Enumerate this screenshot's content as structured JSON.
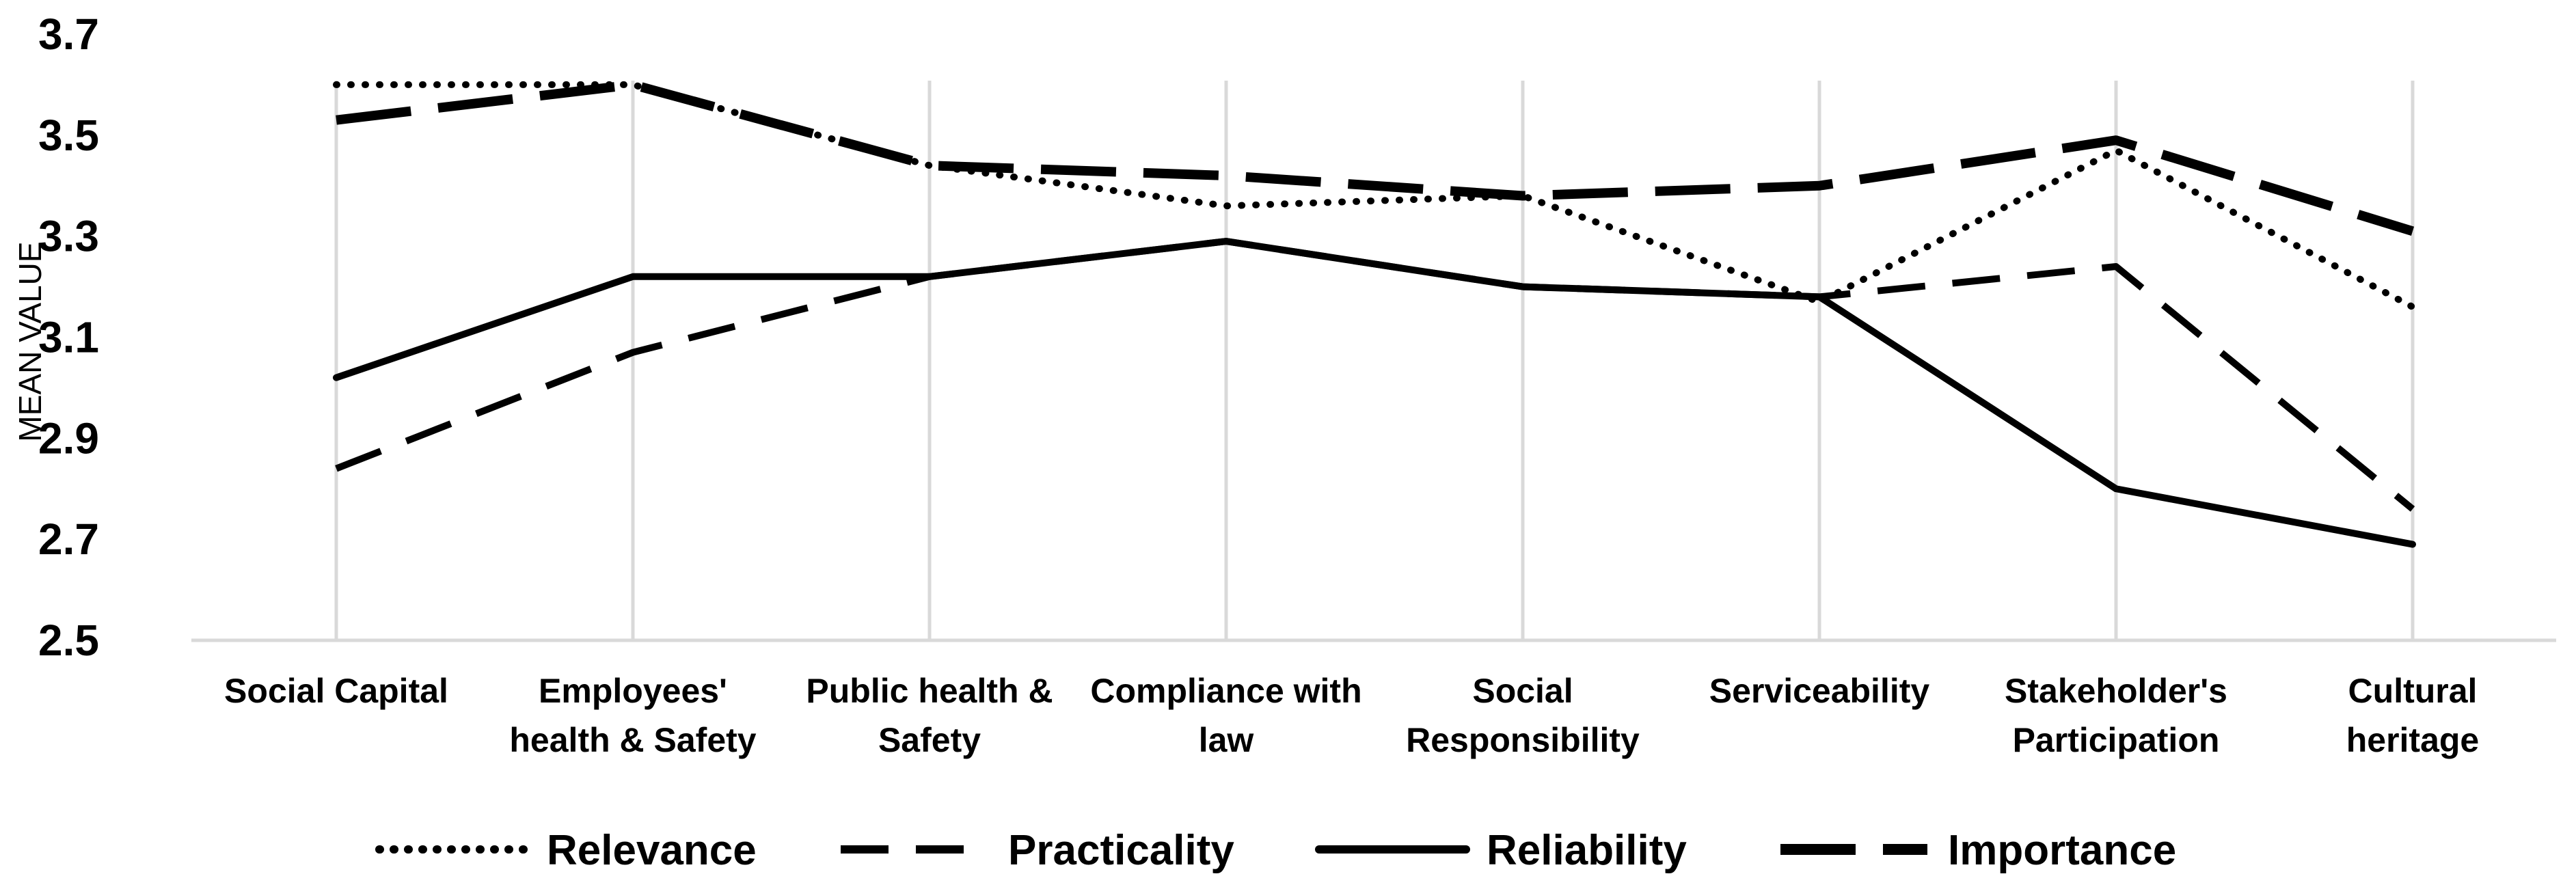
{
  "chart_data": {
    "type": "line",
    "title": "",
    "xlabel": "",
    "ylabel": "MEAN VALUE",
    "ylim": [
      2.5,
      3.7
    ],
    "yticks": [
      "2.5",
      "2.7",
      "2.9",
      "3.1",
      "3.3",
      "3.5",
      "3.7"
    ],
    "grid": "vertical",
    "legend_position": "bottom",
    "categories": [
      [
        "Social Capital"
      ],
      [
        "Employees'",
        "health & Safety"
      ],
      [
        "Public health &",
        "Safety"
      ],
      [
        "Compliance with",
        "law"
      ],
      [
        "Social",
        "Responsibility"
      ],
      [
        "Serviceability"
      ],
      [
        "Stakeholder's",
        "Participation"
      ],
      [
        "Cultural",
        "heritage"
      ]
    ],
    "series": [
      {
        "name": "Relevance",
        "style": "dotted",
        "values": [
          3.6,
          3.6,
          3.44,
          3.36,
          3.38,
          3.17,
          3.47,
          3.16
        ]
      },
      {
        "name": "Practicality",
        "style": "dashed",
        "values": [
          2.84,
          3.07,
          3.22,
          3.29,
          3.2,
          3.18,
          3.24,
          2.76
        ]
      },
      {
        "name": "Reliability",
        "style": "solid",
        "values": [
          3.02,
          3.22,
          3.22,
          3.29,
          3.2,
          3.18,
          2.8,
          2.69
        ]
      },
      {
        "name": "Importance",
        "style": "longdash",
        "values": [
          3.53,
          3.6,
          3.44,
          3.42,
          3.38,
          3.4,
          3.49,
          3.31
        ]
      }
    ]
  }
}
